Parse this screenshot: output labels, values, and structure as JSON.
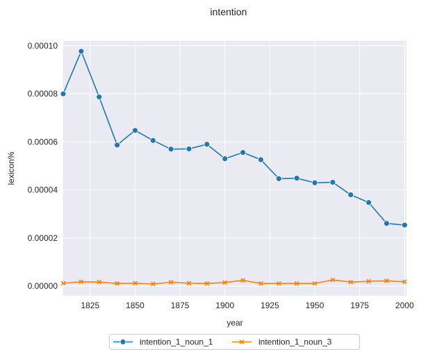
{
  "chart_data": {
    "type": "line",
    "title": "intention",
    "xlabel": "year",
    "ylabel": "lexicon%",
    "xlim": [
      1810,
      2001
    ],
    "ylim": [
      -4e-06,
      0.000102
    ],
    "xticks": [
      1825,
      1850,
      1875,
      1900,
      1925,
      1950,
      1975,
      2000
    ],
    "xtick_labels": [
      "1825",
      "1850",
      "1875",
      "1900",
      "1925",
      "1950",
      "1975",
      "2000"
    ],
    "yticks": [
      0.0,
      2e-05,
      4e-05,
      6e-05,
      8e-05,
      0.0001
    ],
    "ytick_labels": [
      "0.00000",
      "0.00002",
      "0.00004",
      "0.00006",
      "0.00008",
      "0.00010"
    ],
    "grid": true,
    "legend_position": "bottom-center-outside",
    "x": [
      1810,
      1820,
      1830,
      1840,
      1850,
      1860,
      1870,
      1880,
      1890,
      1900,
      1910,
      1920,
      1930,
      1940,
      1950,
      1960,
      1970,
      1980,
      1990,
      2000
    ],
    "series": [
      {
        "name": "intention_1_noun_1",
        "color": "#1f77b4",
        "marker": "circle",
        "values": [
          8e-05,
          9.77e-05,
          7.87e-05,
          5.87e-05,
          6.48e-05,
          6.06e-05,
          5.7e-05,
          5.71e-05,
          5.9e-05,
          5.3e-05,
          5.56e-05,
          5.26e-05,
          4.47e-05,
          4.49e-05,
          4.3e-05,
          4.32e-05,
          3.8e-05,
          3.48e-05,
          2.61e-05,
          2.54e-05
        ]
      },
      {
        "name": "intention_1_noun_3",
        "color": "#ff7f0e",
        "marker": "x",
        "values": [
          1.2e-06,
          1.8e-06,
          1.7e-06,
          1.1e-06,
          1.2e-06,
          9e-07,
          1.6e-06,
          1.2e-06,
          1.1e-06,
          1.5e-06,
          2.4e-06,
          1.1e-06,
          1.1e-06,
          1.1e-06,
          1.1e-06,
          2.6e-06,
          1.7e-06,
          2e-06,
          2.2e-06,
          1.8e-06
        ]
      }
    ]
  }
}
